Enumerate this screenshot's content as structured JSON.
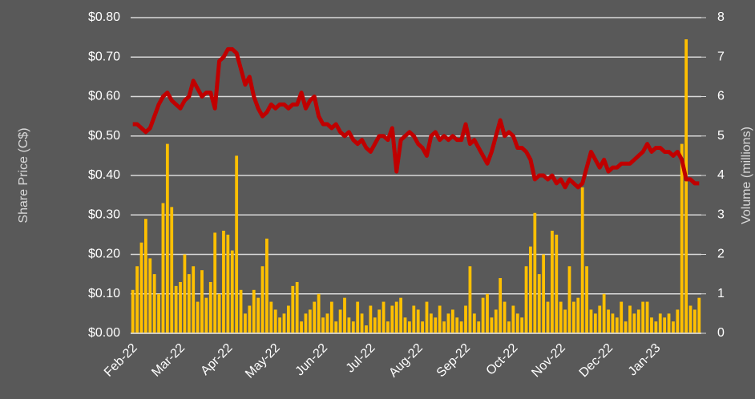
{
  "chart_data": {
    "type": "bar-line",
    "ylabel": "Share Price (C$)",
    "y2label": "Volume (millions)",
    "categories": [
      "Feb-22",
      null,
      null,
      null,
      null,
      null,
      null,
      null,
      null,
      null,
      null,
      "Mar-22",
      null,
      null,
      null,
      null,
      null,
      null,
      null,
      null,
      null,
      null,
      "Apr-22",
      null,
      null,
      null,
      null,
      null,
      null,
      null,
      null,
      null,
      null,
      "May-22",
      null,
      null,
      null,
      null,
      null,
      null,
      null,
      null,
      null,
      null,
      "Jun-22",
      null,
      null,
      null,
      null,
      null,
      null,
      null,
      null,
      null,
      null,
      "Jul-22",
      null,
      null,
      null,
      null,
      null,
      null,
      null,
      null,
      null,
      null,
      "Aug-22",
      null,
      null,
      null,
      null,
      null,
      null,
      null,
      null,
      null,
      null,
      "Sep-22",
      null,
      null,
      null,
      null,
      null,
      null,
      null,
      null,
      null,
      null,
      "Oct-22",
      null,
      null,
      null,
      null,
      null,
      null,
      null,
      null,
      null,
      null,
      "Nov-22",
      null,
      null,
      null,
      null,
      null,
      null,
      null,
      null,
      null,
      null,
      "Dec-22",
      null,
      null,
      null,
      null,
      null,
      null,
      null,
      null,
      null,
      null,
      "Jan-23",
      null,
      null,
      null,
      null,
      null,
      null,
      null,
      null,
      null,
      null
    ],
    "series": [
      {
        "type": "bar",
        "axis": "y2",
        "color": "#ffc000",
        "values": [
          1.1,
          1.7,
          2.3,
          2.9,
          1.9,
          1.5,
          1.0,
          3.3,
          4.8,
          3.2,
          1.2,
          1.3,
          2.0,
          1.5,
          1.7,
          0.8,
          1.6,
          0.9,
          1.3,
          2.55,
          1.0,
          2.6,
          2.5,
          2.1,
          4.5,
          1.1,
          0.5,
          0.7,
          1.1,
          0.9,
          1.7,
          2.4,
          0.8,
          0.6,
          0.4,
          0.5,
          0.7,
          1.2,
          1.3,
          0.3,
          0.5,
          0.6,
          0.8,
          1.0,
          0.4,
          0.5,
          0.8,
          0.3,
          0.6,
          0.9,
          0.4,
          0.3,
          0.8,
          0.5,
          0.2,
          0.7,
          0.4,
          0.6,
          0.8,
          0.3,
          0.7,
          0.8,
          0.9,
          0.4,
          0.3,
          0.7,
          0.6,
          0.3,
          0.8,
          0.5,
          0.4,
          0.7,
          0.3,
          0.5,
          0.6,
          0.4,
          0.3,
          0.7,
          1.7,
          0.5,
          0.3,
          0.9,
          1.0,
          0.4,
          0.6,
          1.4,
          0.8,
          0.3,
          0.7,
          0.5,
          0.4,
          1.7,
          2.2,
          3.05,
          1.5,
          2.0,
          0.8,
          2.6,
          2.5,
          0.8,
          0.6,
          1.7,
          0.8,
          0.9,
          3.7,
          1.7,
          0.6,
          0.5,
          0.7,
          1.0,
          0.6,
          0.5,
          0.4,
          0.8,
          0.3,
          0.7,
          0.5,
          0.6,
          0.8,
          0.8,
          0.4,
          0.3,
          0.5,
          0.4,
          0.5,
          0.3,
          0.6,
          4.8,
          7.45,
          0.7,
          0.6,
          0.9
        ]
      },
      {
        "type": "line",
        "axis": "y",
        "color": "#c00000",
        "values": [
          0.53,
          0.53,
          0.52,
          0.51,
          0.52,
          0.55,
          0.58,
          0.6,
          0.61,
          0.59,
          0.58,
          0.57,
          0.59,
          0.6,
          0.64,
          0.62,
          0.6,
          0.61,
          0.61,
          0.57,
          0.69,
          0.7,
          0.72,
          0.72,
          0.71,
          0.67,
          0.63,
          0.65,
          0.6,
          0.57,
          0.55,
          0.56,
          0.58,
          0.57,
          0.58,
          0.58,
          0.57,
          0.58,
          0.58,
          0.61,
          0.57,
          0.59,
          0.6,
          0.55,
          0.53,
          0.53,
          0.52,
          0.53,
          0.51,
          0.5,
          0.51,
          0.49,
          0.48,
          0.49,
          0.47,
          0.46,
          0.48,
          0.5,
          0.5,
          0.49,
          0.52,
          0.41,
          0.49,
          0.5,
          0.51,
          0.5,
          0.48,
          0.47,
          0.45,
          0.5,
          0.51,
          0.49,
          0.5,
          0.49,
          0.5,
          0.49,
          0.49,
          0.53,
          0.48,
          0.49,
          0.47,
          0.45,
          0.43,
          0.46,
          0.5,
          0.54,
          0.5,
          0.51,
          0.5,
          0.47,
          0.47,
          0.46,
          0.44,
          0.39,
          0.4,
          0.4,
          0.39,
          0.4,
          0.38,
          0.39,
          0.37,
          0.39,
          0.38,
          0.37,
          0.38,
          0.42,
          0.46,
          0.44,
          0.42,
          0.44,
          0.41,
          0.42,
          0.42,
          0.43,
          0.43,
          0.43,
          0.44,
          0.45,
          0.46,
          0.48,
          0.46,
          0.47,
          0.47,
          0.46,
          0.46,
          0.45,
          0.46,
          0.44,
          0.39,
          0.39,
          0.38,
          0.38
        ]
      }
    ],
    "ylim": [
      0,
      0.8
    ],
    "yticks": [
      {
        "value": 0,
        "label": "$0.00"
      },
      {
        "value": 0.1,
        "label": "$0.10"
      },
      {
        "value": 0.2,
        "label": "$0.20"
      },
      {
        "value": 0.3,
        "label": "$0.30"
      },
      {
        "value": 0.4,
        "label": "$0.40"
      },
      {
        "value": 0.5,
        "label": "$0.50"
      },
      {
        "value": 0.6,
        "label": "$0.60"
      },
      {
        "value": 0.7,
        "label": "$0.70"
      },
      {
        "value": 0.8,
        "label": "$0.80"
      }
    ],
    "y2lim": [
      0,
      8
    ],
    "y2ticks": [
      0,
      1,
      2,
      3,
      4,
      5,
      6,
      7,
      8
    ],
    "grid": true
  }
}
